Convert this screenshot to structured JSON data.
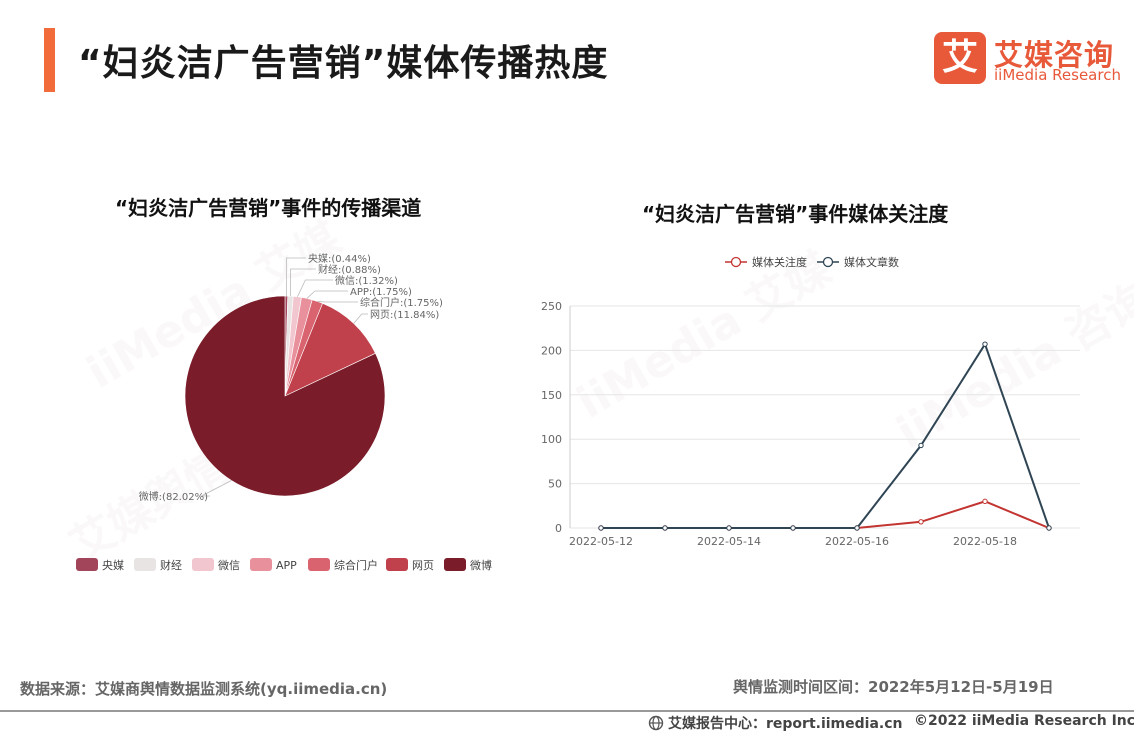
{
  "header": {
    "title": "“妇炎洁广告营销”媒体传播热度",
    "logo_mark": "艾",
    "logo_cn": "艾媒咨询",
    "logo_en": "iiMedia Research",
    "accent_color": "#f26b3a"
  },
  "chart_data": [
    {
      "type": "pie",
      "title": "“妇炎洁广告营销”事件的传播渠道",
      "slices": [
        {
          "name": "央媒",
          "value": 0.44,
          "label": "央媒:(0.44%)",
          "color": "#a3455a"
        },
        {
          "name": "财经",
          "value": 0.88,
          "label": "财经:(0.88%)",
          "color": "#e8e4e4"
        },
        {
          "name": "微信",
          "value": 1.32,
          "label": "微信:(1.32%)",
          "color": "#f2c6cf"
        },
        {
          "name": "APP",
          "value": 1.75,
          "label": "APP:(1.75%)",
          "color": "#e8909c"
        },
        {
          "name": "综合门户",
          "value": 1.75,
          "label": "综合门户:(1.75%)",
          "color": "#d9646f"
        },
        {
          "name": "网页",
          "value": 11.84,
          "label": "网页:(11.84%)",
          "color": "#c0414c"
        },
        {
          "name": "微博",
          "value": 82.02,
          "label": "微博:(82.02%)",
          "color": "#7a1c29"
        }
      ],
      "legend_placement": "bottom"
    },
    {
      "type": "line",
      "title": "“妇炎洁广告营销”事件媒体关注度",
      "x": [
        "2022-05-12",
        "2022-05-13",
        "2022-05-14",
        "2022-05-15",
        "2022-05-16",
        "2022-05-17",
        "2022-05-18",
        "2022-05-19"
      ],
      "x_tick_labels": [
        "2022-05-12",
        "2022-05-14",
        "2022-05-16",
        "2022-05-18"
      ],
      "series": [
        {
          "name": "媒体关注度",
          "color": "#c23531",
          "values": [
            0,
            0,
            0,
            0,
            0,
            7,
            30,
            0
          ]
        },
        {
          "name": "媒体文章数",
          "color": "#2f4554",
          "values": [
            0,
            0,
            0,
            0,
            0,
            93,
            207,
            0
          ]
        }
      ],
      "ylim": [
        0,
        250
      ],
      "yticks": [
        0,
        50,
        100,
        150,
        200,
        250
      ],
      "grid": true,
      "legend_placement": "top-center"
    }
  ],
  "footer": {
    "source": "数据来源：艾媒商舆情数据监测系统(yq.iimedia.cn)",
    "period": "舆情监测时间区间：2022年5月12日-5月19日",
    "report_center": "艾媒报告中心：report.iimedia.cn",
    "copyright": "©2022  iiMedia Research  Inc"
  }
}
